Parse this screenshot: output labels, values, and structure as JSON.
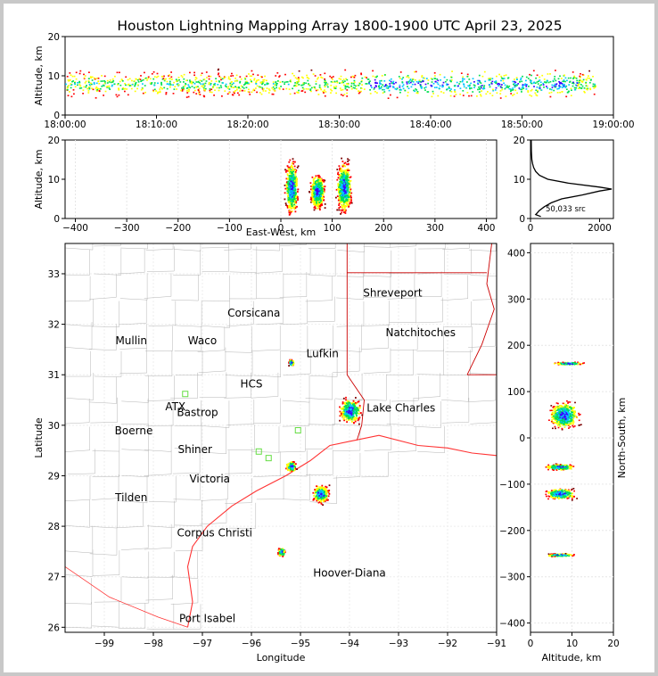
{
  "figure": {
    "title": "Houston Lightning Mapping Array 1800-1900 UTC April 23, 2025"
  },
  "colors": {
    "frame_bg": "#c8c8c8",
    "state_lines": "#cc0000",
    "county_lines": "#b4b4b4",
    "coast": "#ff3333",
    "station_orange": "#ff8c2a",
    "station_blue": "#1a1aff",
    "station_green": "#66dd44",
    "density_scale": [
      "#3b00ff",
      "#00c8ff",
      "#00e050",
      "#ffff00",
      "#ff0000",
      "#7a0000"
    ]
  },
  "chart_data": [
    {
      "id": "time_height",
      "type": "heatmap",
      "xlabel": "",
      "ylabel": "Altitude, km",
      "xlim": [
        "18:00:00",
        "19:00:00"
      ],
      "ylim": [
        0,
        20
      ],
      "xticks": [
        "18:00:00",
        "18:10:00",
        "18:20:00",
        "18:30:00",
        "18:40:00",
        "18:50:00",
        "19:00:00"
      ],
      "yticks": [
        "0",
        "10",
        "20"
      ],
      "activity_start_min": 0,
      "activity_end_min": 58,
      "typical_altitude_km": [
        4,
        12
      ],
      "peak_altitude_km": 8
    },
    {
      "id": "east_west_altitude",
      "type": "heatmap",
      "xlabel": "East-West, km",
      "ylabel": "Altitude, km",
      "xlim": [
        -420,
        420
      ],
      "ylim": [
        0,
        20
      ],
      "xticks": [
        "−400",
        "−300",
        "−200",
        "−100",
        "0",
        "100",
        "200",
        "300",
        "400"
      ],
      "yticks": [
        "0",
        "10",
        "20"
      ],
      "cells": [
        {
          "x_km": 20,
          "alt_km": 8,
          "width_km": 25,
          "height_km": 14
        },
        {
          "x_km": 70,
          "alt_km": 7,
          "width_km": 28,
          "height_km": 9
        },
        {
          "x_km": 122,
          "alt_km": 8,
          "width_km": 30,
          "height_km": 13
        }
      ]
    },
    {
      "id": "altitude_histogram",
      "type": "line",
      "xlabel": "",
      "ylabel": "",
      "xlim": [
        0,
        2400
      ],
      "ylim": [
        0,
        20
      ],
      "xticks": [
        "0",
        "2000"
      ],
      "yticks": [
        "0",
        "10",
        "20"
      ],
      "annotation": "50,033 src",
      "altitude_km": [
        0.5,
        1,
        1.5,
        2,
        3,
        4,
        5,
        6,
        7,
        7.5,
        8,
        9,
        10,
        11,
        12,
        13,
        14,
        15,
        17,
        20
      ],
      "sources": [
        300,
        150,
        200,
        250,
        400,
        600,
        900,
        1500,
        2000,
        2350,
        2000,
        1100,
        500,
        260,
        150,
        90,
        60,
        40,
        25,
        20
      ]
    },
    {
      "id": "plan_view",
      "type": "scatter",
      "xlabel": "Longitude",
      "ylabel": "Latitude",
      "xlim": [
        -99.8,
        -91
      ],
      "ylim": [
        25.9,
        33.6
      ],
      "xticks": [
        "−99",
        "−98",
        "−97",
        "−96",
        "−95",
        "−94",
        "−93",
        "−92",
        "−91"
      ],
      "yticks": [
        "26",
        "27",
        "28",
        "29",
        "30",
        "31",
        "32",
        "33"
      ],
      "cities": [
        {
          "name": "Shreveport",
          "lon": -93.12,
          "lat": 32.55,
          "style": "black"
        },
        {
          "name": "Corsicana",
          "lon": -95.95,
          "lat": 32.15,
          "style": "black"
        },
        {
          "name": "Natchitoches",
          "lon": -92.55,
          "lat": 31.76,
          "style": "black"
        },
        {
          "name": "Mullin",
          "lon": -98.45,
          "lat": 31.6,
          "style": "orange"
        },
        {
          "name": "Waco",
          "lon": -97.0,
          "lat": 31.6,
          "style": "black"
        },
        {
          "name": "Lufkin",
          "lon": -94.55,
          "lat": 31.35,
          "style": "black"
        },
        {
          "name": "HCS",
          "lon": -96.0,
          "lat": 30.75,
          "style": "black"
        },
        {
          "name": "ATX",
          "lon": -97.55,
          "lat": 30.3,
          "style": "orange"
        },
        {
          "name": "Bastrop",
          "lon": -97.1,
          "lat": 30.18,
          "style": "black"
        },
        {
          "name": "Lake Charles",
          "lon": -92.95,
          "lat": 30.27,
          "style": "black"
        },
        {
          "name": "Boerne",
          "lon": -98.4,
          "lat": 29.82,
          "style": "black"
        },
        {
          "name": "Shiner",
          "lon": -97.15,
          "lat": 29.45,
          "style": "black"
        },
        {
          "name": "Victoria",
          "lon": -96.85,
          "lat": 28.87,
          "style": "black"
        },
        {
          "name": "Tilden",
          "lon": -98.45,
          "lat": 28.5,
          "style": "black"
        },
        {
          "name": "Corpus Christi",
          "lon": -96.75,
          "lat": 27.8,
          "style": "black"
        },
        {
          "name": "Hoover-Diana",
          "lon": -94.0,
          "lat": 27.0,
          "style": "blue"
        },
        {
          "name": "Port Isabel",
          "lon": -96.9,
          "lat": 26.1,
          "style": "black"
        }
      ],
      "storm_cells": [
        {
          "lon": -94.0,
          "lat": 30.3,
          "size": 1.0
        },
        {
          "lon": -94.6,
          "lat": 28.65,
          "size": 0.75
        },
        {
          "lon": -95.2,
          "lat": 29.2,
          "size": 0.45
        },
        {
          "lon": -95.4,
          "lat": 27.5,
          "size": 0.35
        },
        {
          "lon": -95.2,
          "lat": 31.25,
          "size": 0.25
        }
      ]
    },
    {
      "id": "north_south_altitude",
      "type": "heatmap",
      "xlabel": "Altitude, km",
      "ylabel": "North-South, km",
      "xlim": [
        0,
        20
      ],
      "ylim": [
        -420,
        420
      ],
      "xticks": [
        "0",
        "10",
        "20"
      ],
      "yticks": [
        "−400",
        "−300",
        "−200",
        "−100",
        "0",
        "100",
        "200",
        "300",
        "400"
      ],
      "cells": [
        {
          "ns_km": 50,
          "alt_km": 8,
          "extent_km": 70
        },
        {
          "ns_km": -62,
          "alt_km": 7,
          "extent_km": 16
        },
        {
          "ns_km": -120,
          "alt_km": 7,
          "extent_km": 30
        },
        {
          "ns_km": -252,
          "alt_km": 7,
          "extent_km": 8
        },
        {
          "ns_km": 162,
          "alt_km": 9,
          "extent_km": 8
        }
      ]
    }
  ]
}
